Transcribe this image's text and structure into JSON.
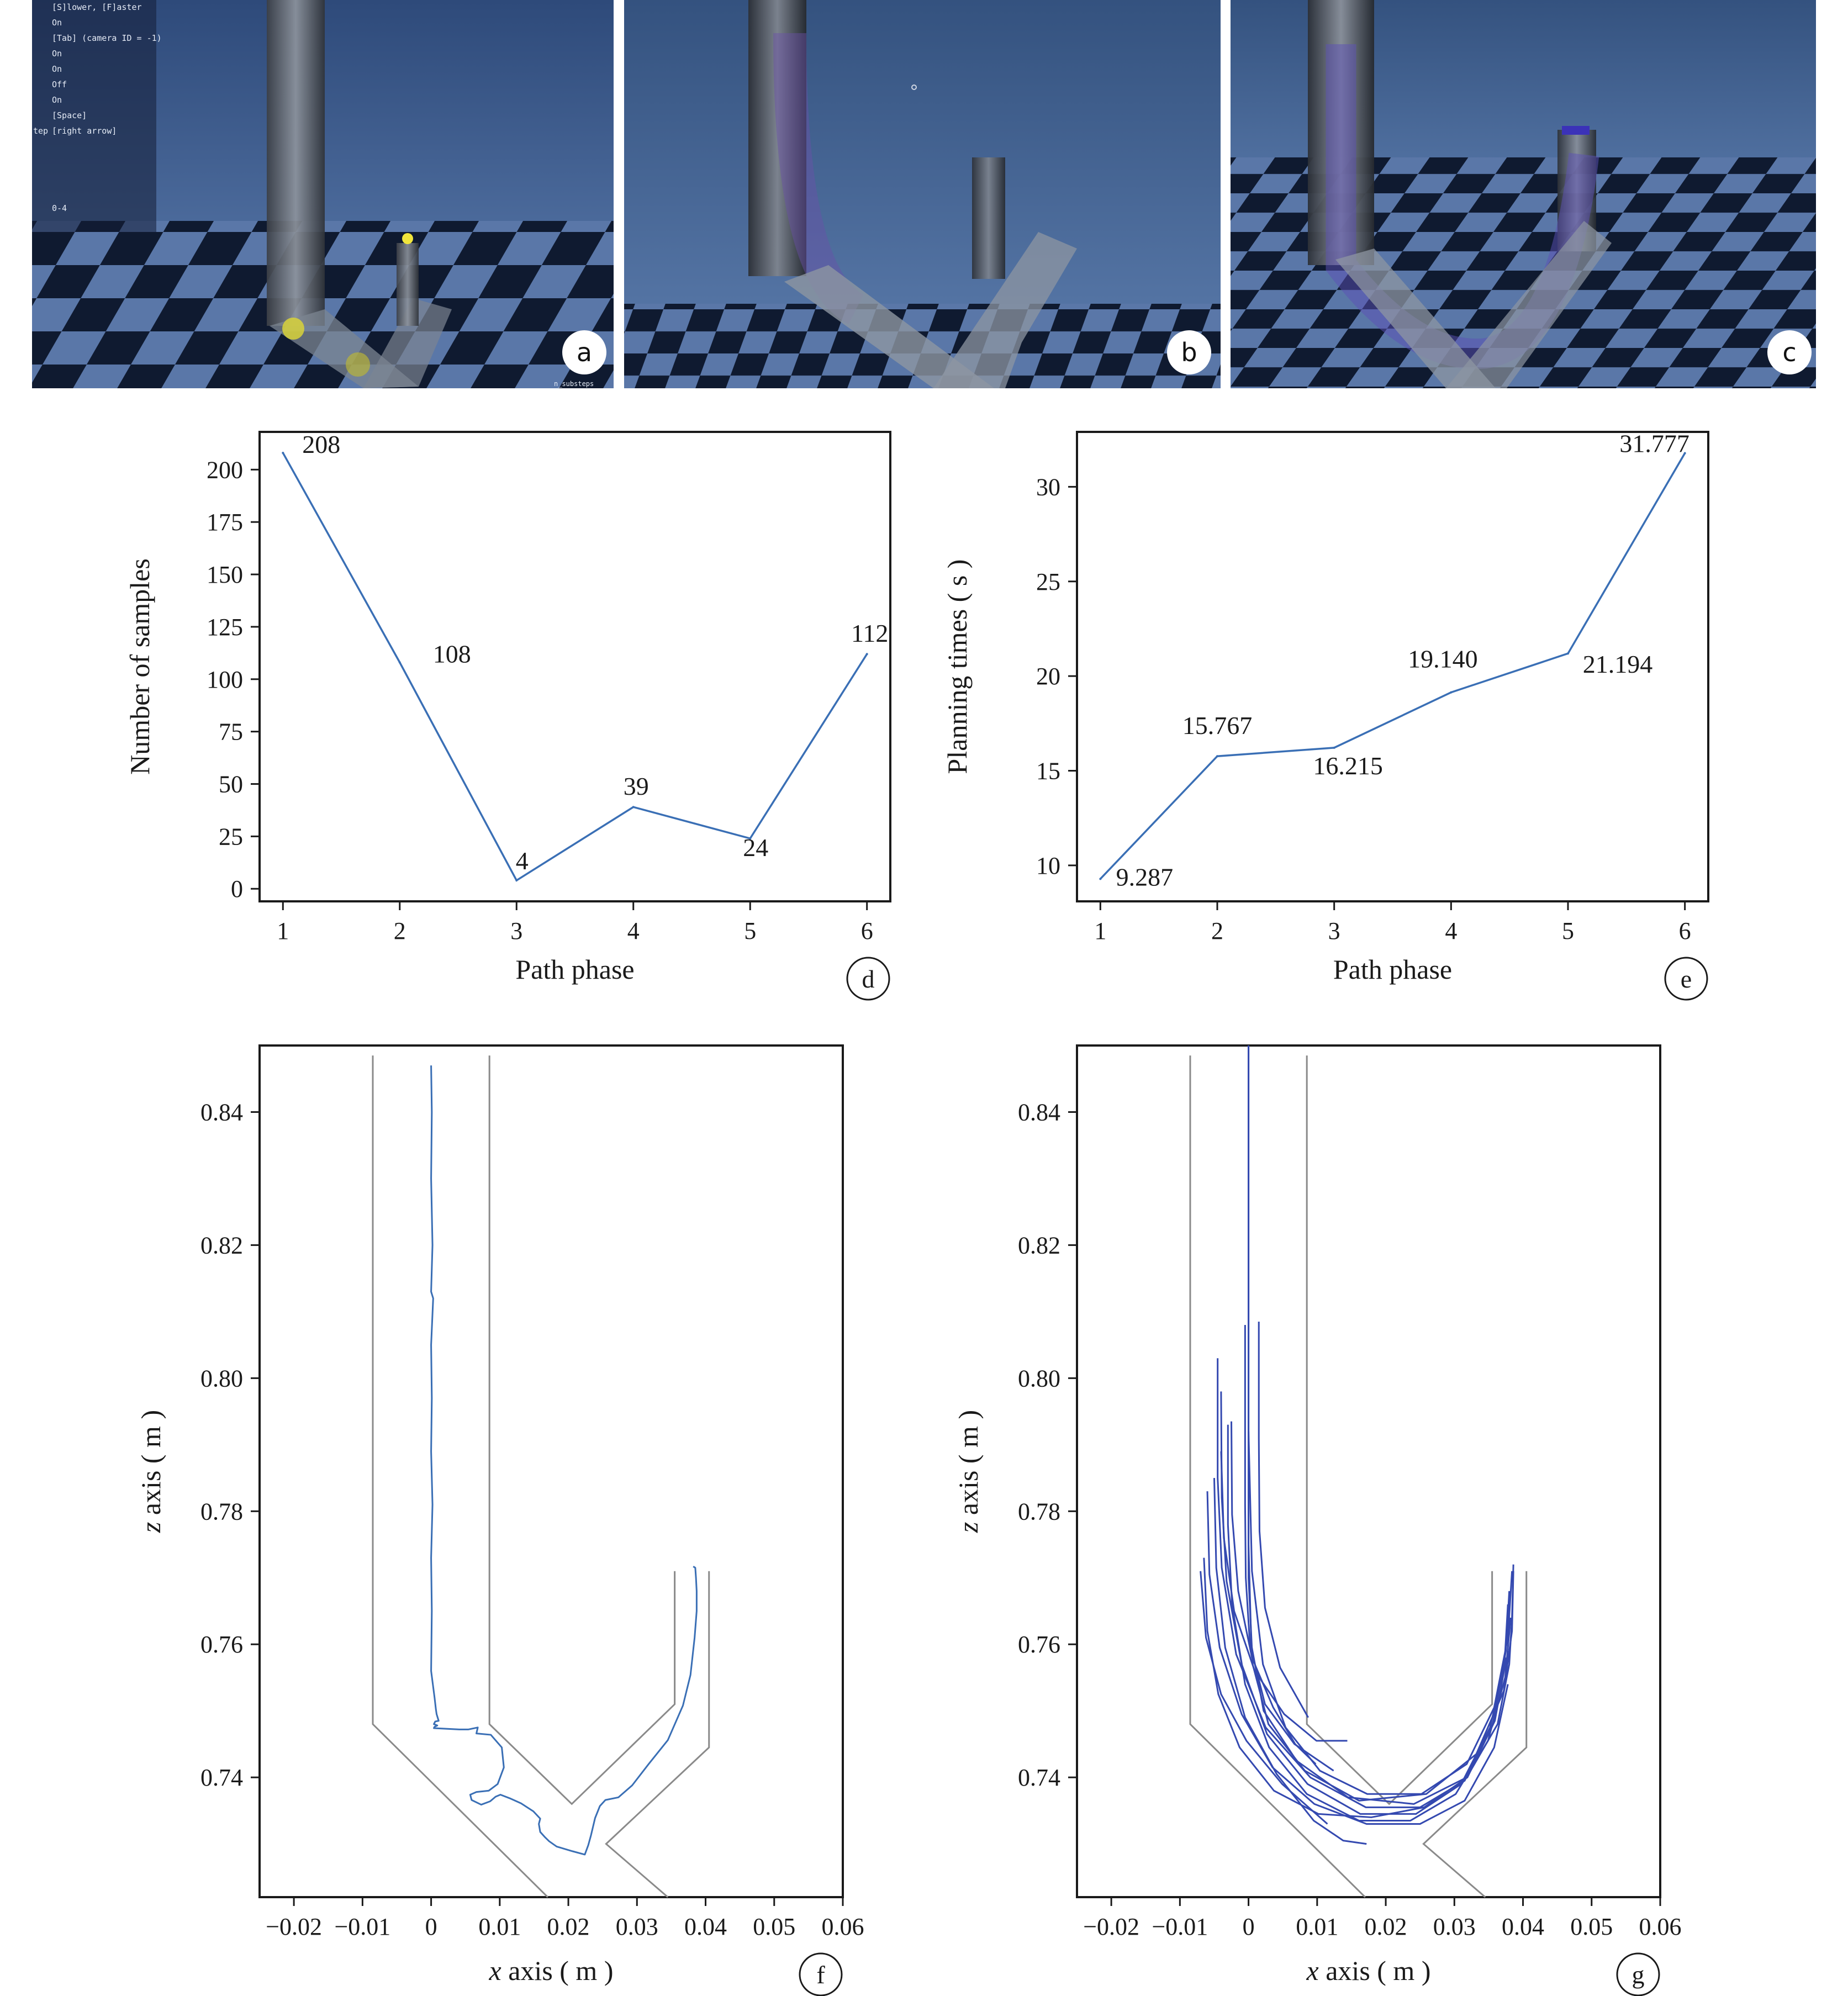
{
  "panels": {
    "a": {
      "letter": "a",
      "hud_lines": [
        "[S]lower, [F]aster",
        "On",
        "[Tab] (camera ID = -1)",
        "On",
        "On",
        "Off",
        "On",
        "[Space]",
        "[right arrow]",
        "0-4"
      ],
      "hud_side_label": "tep",
      "corner_text": "n_substeps"
    },
    "b": {
      "letter": "b"
    },
    "c": {
      "letter": "c"
    }
  },
  "colors": {
    "scene_sky": "#3b5a8c",
    "scene_floor_light": "#5a77a8",
    "scene_floor_dark": "#0f1a30",
    "line_blue": "#3a6fb5",
    "trajectory_blue": "#3449b0",
    "wall_gray": "#8a8a8a"
  },
  "chart_data": [
    {
      "id": "d",
      "letter": "d",
      "type": "line",
      "x": [
        1,
        2,
        3,
        4,
        5,
        6
      ],
      "values": [
        208,
        108,
        4,
        39,
        24,
        112
      ],
      "data_labels": [
        "208",
        "108",
        "4",
        "39",
        "24",
        "112"
      ],
      "xlabel": "Path phase",
      "ylabel": "Number of samples",
      "xlim": [
        0.8,
        6.2
      ],
      "ylim": [
        -6,
        218
      ],
      "xticks": [
        1,
        2,
        3,
        4,
        5,
        6
      ],
      "yticks": [
        0,
        25,
        50,
        75,
        100,
        125,
        150,
        175,
        200
      ],
      "grid": false
    },
    {
      "id": "e",
      "letter": "e",
      "type": "line",
      "x": [
        1,
        2,
        3,
        4,
        5,
        6
      ],
      "values": [
        9.287,
        15.767,
        16.215,
        19.14,
        21.194,
        31.777
      ],
      "data_labels": [
        "9.287",
        "15.767",
        "16.215",
        "19.140",
        "21.194",
        "31.777"
      ],
      "xlabel": "Path phase",
      "ylabel": "Planning times ( s )",
      "xlim": [
        0.8,
        6.2
      ],
      "ylim": [
        8.1,
        32.9
      ],
      "xticks": [
        1,
        2,
        3,
        4,
        5,
        6
      ],
      "yticks": [
        10,
        15,
        20,
        25,
        30
      ],
      "grid": false
    },
    {
      "id": "f",
      "letter": "f",
      "type": "line",
      "xlabel_var": "x",
      "xlabel_rest": " axis ( m )",
      "ylabel_var": "z",
      "ylabel_rest": " axis ( m )",
      "xlim": [
        -0.025,
        0.06
      ],
      "ylim": [
        0.722,
        0.85
      ],
      "xticks": [
        -0.02,
        -0.01,
        0,
        0.01,
        0.02,
        0.03,
        0.04,
        0.05,
        0.06
      ],
      "xtick_labels": [
        "−0.02",
        "−0.01",
        "0",
        "0.01",
        "0.02",
        "0.03",
        "0.04",
        "0.05",
        "0.06"
      ],
      "yticks": [
        0.74,
        0.76,
        0.78,
        0.8,
        0.82,
        0.84
      ],
      "ytick_labels": [
        "0.74",
        "0.76",
        "0.78",
        "0.80",
        "0.82",
        "0.84"
      ],
      "walls": [
        [
          [
            -0.0085,
            0.8485
          ],
          [
            -0.0085,
            0.748
          ],
          [
            0.017,
            0.722
          ]
        ],
        [
          [
            0.0085,
            0.8485
          ],
          [
            0.0085,
            0.748
          ],
          [
            0.0205,
            0.736
          ],
          [
            0.0355,
            0.751
          ],
          [
            0.0355,
            0.771
          ]
        ],
        [
          [
            0.0405,
            0.771
          ],
          [
            0.0405,
            0.7445
          ],
          [
            0.0255,
            0.73
          ],
          [
            0.0345,
            0.722
          ]
        ]
      ],
      "series": [
        {
          "x": [
            0.0,
            0.0001,
            0.0,
            0.0002,
            0.0,
            0.0003,
            0.0,
            0.0001,
            0.0,
            0.0002,
            0.0,
            0.0001,
            0.0,
            0.0005,
            0.0007,
            0.0008,
            0.0011,
            0.0006,
            0.0004,
            0.0009,
            0.0005,
            0.0004,
            0.0041,
            0.0054,
            0.0068,
            0.0066,
            0.0087,
            0.0103,
            0.0106,
            0.0097,
            0.0084,
            0.0066,
            0.0057,
            0.0059,
            0.0073,
            0.0086,
            0.0094,
            0.0101,
            0.0116,
            0.0131,
            0.0149,
            0.0159,
            0.0157,
            0.0159,
            0.0166,
            0.0172,
            0.0183,
            0.0206,
            0.0224,
            0.0229,
            0.0233,
            0.0239,
            0.0246,
            0.0254,
            0.0273,
            0.0293,
            0.0317,
            0.0345,
            0.0367,
            0.0378,
            0.0384,
            0.0387,
            0.0387,
            0.0386,
            0.0385,
            0.0382
          ],
          "y": [
            0.847,
            0.84,
            0.83,
            0.82,
            0.813,
            0.812,
            0.805,
            0.797,
            0.789,
            0.781,
            0.773,
            0.765,
            0.756,
            0.752,
            0.7502,
            0.7495,
            0.7485,
            0.7484,
            0.748,
            0.7478,
            0.7476,
            0.7474,
            0.7472,
            0.7472,
            0.7475,
            0.7466,
            0.7464,
            0.7445,
            0.7415,
            0.739,
            0.738,
            0.7378,
            0.7374,
            0.7366,
            0.7359,
            0.7364,
            0.7371,
            0.7374,
            0.7368,
            0.7361,
            0.7349,
            0.7338,
            0.733,
            0.7318,
            0.731,
            0.7304,
            0.7296,
            0.7289,
            0.7284,
            0.7298,
            0.7313,
            0.7339,
            0.7357,
            0.7366,
            0.737,
            0.7388,
            0.742,
            0.7456,
            0.7508,
            0.7554,
            0.761,
            0.765,
            0.768,
            0.77,
            0.7715,
            0.7717
          ]
        }
      ]
    },
    {
      "id": "g",
      "letter": "g",
      "type": "line",
      "xlabel_var": "x",
      "xlabel_rest": " axis ( m )",
      "ylabel_var": "z",
      "ylabel_rest": " axis ( m )",
      "xlim": [
        -0.025,
        0.06
      ],
      "ylim": [
        0.722,
        0.85
      ],
      "xticks": [
        -0.02,
        -0.01,
        0,
        0.01,
        0.02,
        0.03,
        0.04,
        0.05,
        0.06
      ],
      "xtick_labels": [
        "−0.02",
        "−0.01",
        "0",
        "0.01",
        "0.02",
        "0.03",
        "0.04",
        "0.05",
        "0.06"
      ],
      "yticks": [
        0.74,
        0.76,
        0.78,
        0.8,
        0.82,
        0.84
      ],
      "ytick_labels": [
        "0.74",
        "0.76",
        "0.78",
        "0.80",
        "0.82",
        "0.84"
      ],
      "walls": [
        [
          [
            -0.0085,
            0.8485
          ],
          [
            -0.0085,
            0.748
          ],
          [
            0.017,
            0.722
          ]
        ],
        [
          [
            0.0085,
            0.8485
          ],
          [
            0.0085,
            0.748
          ],
          [
            0.0205,
            0.736
          ],
          [
            0.0355,
            0.751
          ],
          [
            0.0355,
            0.771
          ]
        ],
        [
          [
            0.0405,
            0.771
          ],
          [
            0.0405,
            0.7445
          ],
          [
            0.0255,
            0.73
          ],
          [
            0.0345,
            0.722
          ]
        ]
      ],
      "series": [
        {
          "x": [
            0.0,
            0.0,
            0.0,
            0.0,
            0.0,
            0.0006,
            0.0029,
            0.0082,
            0.0161,
            0.0259,
            0.0332,
            0.0372,
            0.0384,
            0.0386
          ],
          "y": [
            0.85,
            0.83,
            0.81,
            0.79,
            0.77,
            0.757,
            0.748,
            0.741,
            0.7365,
            0.7375,
            0.7435,
            0.753,
            0.762,
            0.771
          ]
        },
        {
          "x": [
            0.0,
            0.0,
            0.0,
            0.0,
            0.0004,
            0.0022,
            0.007,
            0.0145,
            0.0241,
            0.0318,
            0.0363,
            0.038,
            0.0384,
            0.0386
          ],
          "y": [
            0.85,
            0.82,
            0.795,
            0.775,
            0.76,
            0.75,
            0.7425,
            0.737,
            0.736,
            0.74,
            0.748,
            0.757,
            0.764,
            0.772
          ]
        },
        {
          "x": [
            -0.0005,
            -0.0005,
            -0.0005,
            -0.0004,
            0.0002,
            0.0024,
            0.0067,
            0.0124
          ],
          "y": [
            0.808,
            0.795,
            0.781,
            0.77,
            0.76,
            0.751,
            0.745,
            0.741
          ]
        },
        {
          "x": [
            -0.0045,
            -0.0045,
            -0.0039,
            -0.0018,
            0.0025,
            0.009,
            0.0171,
            0.025,
            0.0315,
            0.0356,
            0.0375,
            0.038
          ],
          "y": [
            0.803,
            0.785,
            0.7715,
            0.7585,
            0.7475,
            0.74,
            0.7355,
            0.7355,
            0.7395,
            0.748,
            0.759,
            0.768
          ]
        },
        {
          "x": [
            -0.004,
            -0.0039,
            -0.0032,
            -0.001,
            0.0027,
            0.0086,
            0.0163,
            0.0244,
            0.031,
            0.0352,
            0.0373,
            0.0378
          ],
          "y": [
            0.798,
            0.782,
            0.7695,
            0.757,
            0.7465,
            0.739,
            0.7345,
            0.7345,
            0.739,
            0.7475,
            0.757,
            0.766
          ]
        },
        {
          "x": [
            -0.003,
            -0.003,
            -0.0024,
            -0.0005,
            0.003,
            0.0085,
            0.0161,
            0.0236,
            0.0302,
            0.0349,
            0.0374,
            0.0382
          ],
          "y": [
            0.793,
            0.778,
            0.766,
            0.754,
            0.7445,
            0.7375,
            0.7335,
            0.7335,
            0.7375,
            0.7455,
            0.755,
            0.764
          ]
        },
        {
          "x": [
            -0.0065,
            -0.006,
            -0.0044,
            -0.0013,
            0.0037,
            0.0102,
            0.0179,
            0.0256,
            0.0319,
            0.0359,
            0.0376
          ],
          "y": [
            0.773,
            0.762,
            0.7525,
            0.7445,
            0.738,
            0.7345,
            0.734,
            0.7355,
            0.74,
            0.7485,
            0.758
          ]
        },
        {
          "x": [
            -0.006,
            -0.0057,
            -0.0042,
            -0.001,
            0.0035,
            0.0096,
            0.0172,
            0.025,
            0.0315,
            0.0358,
            0.0378
          ],
          "y": [
            0.783,
            0.7705,
            0.7595,
            0.7495,
            0.7415,
            0.736,
            0.733,
            0.733,
            0.7365,
            0.7445,
            0.754
          ]
        },
        {
          "x": [
            -0.007,
            -0.0062,
            -0.004,
            -0.0003,
            0.0049,
            0.0115
          ],
          "y": [
            0.771,
            0.761,
            0.7525,
            0.7455,
            0.739,
            0.733
          ]
        },
        {
          "x": [
            -0.005,
            -0.0047,
            -0.0034,
            -0.0005,
            0.0041,
            0.0095,
            0.0138,
            0.0172
          ],
          "y": [
            0.785,
            0.7715,
            0.7595,
            0.749,
            0.7405,
            0.7335,
            0.7305,
            0.73
          ]
        },
        {
          "x": [
            -0.0025,
            -0.0024,
            -0.0015,
            0.0005,
            0.0036,
            0.0068,
            0.0098
          ],
          "y": [
            0.7935,
            0.7795,
            0.768,
            0.758,
            0.7505,
            0.745,
            0.742
          ]
        },
        {
          "x": [
            0.0015,
            0.0015,
            0.0016,
            0.0024,
            0.0046,
            0.0087
          ],
          "y": [
            0.8085,
            0.791,
            0.777,
            0.7655,
            0.7565,
            0.749
          ]
        },
        {
          "x": [
            -0.004,
            -0.0036,
            -0.0021,
            0.0009,
            0.0052,
            0.0099,
            0.0144
          ],
          "y": [
            0.789,
            0.776,
            0.765,
            0.756,
            0.7495,
            0.7455,
            0.7455
          ]
        },
        {
          "x": [
            0.0,
            0.0005,
            0.0021,
            0.0054,
            0.0104,
            0.0173,
            0.0252,
            0.0318,
            0.0358,
            0.0378,
            0.0384
          ],
          "y": [
            0.792,
            0.771,
            0.757,
            0.7475,
            0.741,
            0.7375,
            0.7375,
            0.742,
            0.7505,
            0.761,
            0.771
          ]
        }
      ]
    }
  ]
}
